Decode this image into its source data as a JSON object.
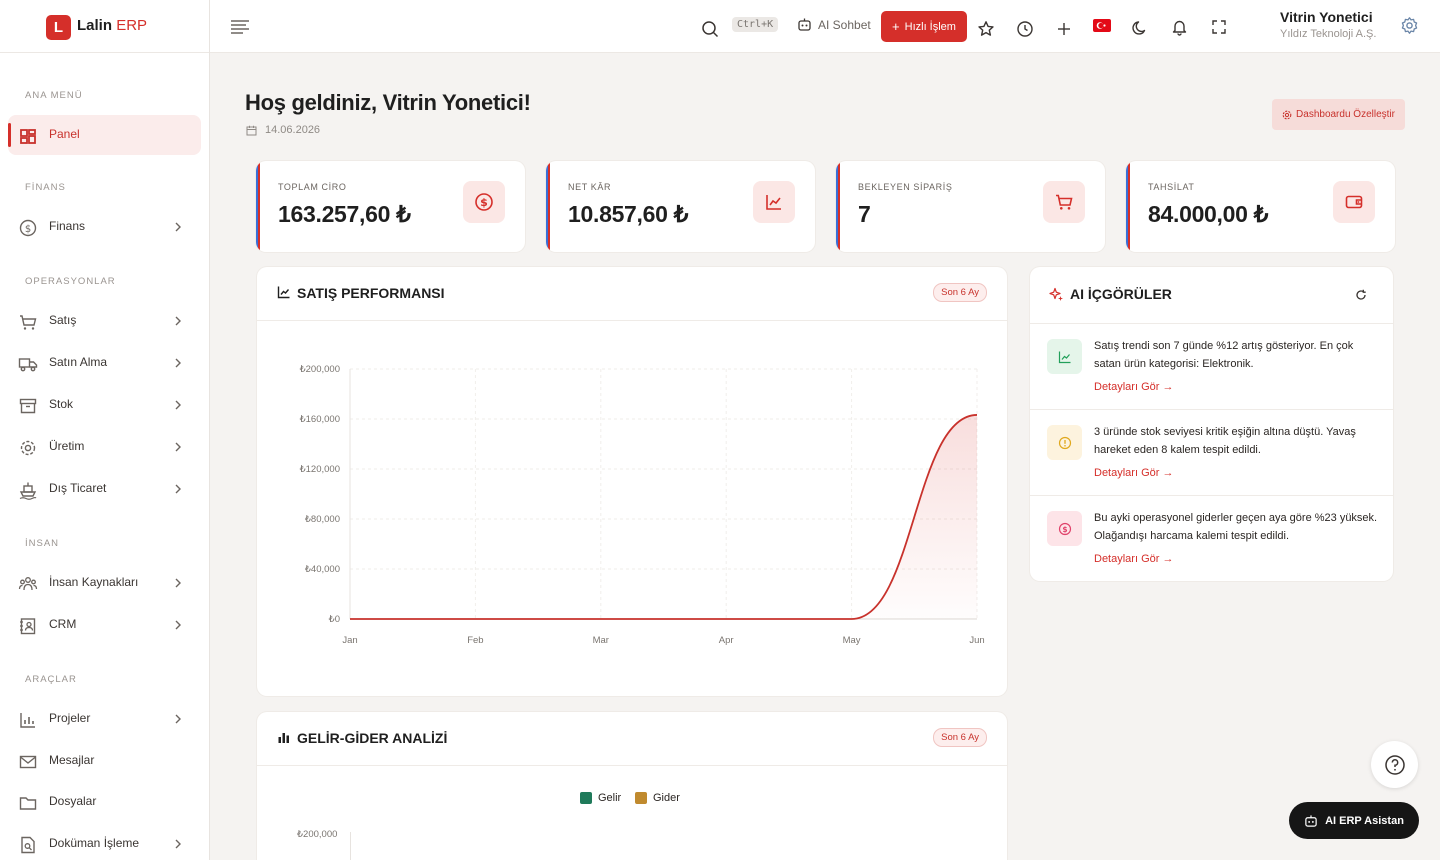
{
  "brand": {
    "logo_letter": "L",
    "name": "Lalin",
    "suffix": "ERP"
  },
  "sidebar": {
    "sections": [
      "ANA MENÜ",
      "FİNANS",
      "OPERASYONLAR",
      "İNSAN",
      "ARAÇLAR"
    ],
    "items": [
      {
        "label": "Panel",
        "icon": "dashboard-icon",
        "active": true,
        "has_children": false
      },
      {
        "label": "Finans",
        "icon": "dollar-circle-icon",
        "has_children": true
      },
      {
        "label": "Satış",
        "icon": "cart-icon",
        "has_children": true
      },
      {
        "label": "Satın Alma",
        "icon": "truck-icon",
        "has_children": true
      },
      {
        "label": "Stok",
        "icon": "archive-icon",
        "has_children": true
      },
      {
        "label": "Üretim",
        "icon": "gear-icon",
        "has_children": true
      },
      {
        "label": "Dış Ticaret",
        "icon": "ship-icon",
        "has_children": true
      },
      {
        "label": "İnsan Kaynakları",
        "icon": "people-icon",
        "has_children": true
      },
      {
        "label": "CRM",
        "icon": "contacts-icon",
        "has_children": true
      },
      {
        "label": "Projeler",
        "icon": "chart-icon",
        "has_children": true
      },
      {
        "label": "Mesajlar",
        "icon": "mail-icon",
        "has_children": false
      },
      {
        "label": "Dosyalar",
        "icon": "folder-icon",
        "has_children": false
      },
      {
        "label": "Doküman İşleme",
        "icon": "document-search-icon",
        "has_children": true
      }
    ]
  },
  "topbar": {
    "shortcut": "Ctrl+K",
    "ai_chat": "AI Sohbet",
    "quick_action": "Hızlı İşlem",
    "user_name": "Vitrin Yonetici",
    "user_company": "Yıldız Teknoloji A.Ş."
  },
  "main": {
    "welcome": "Hoş geldiniz, Vitrin Yonetici!",
    "date": "14.06.2026",
    "customize_label": "Dashboardu Özelleştir",
    "stats": [
      {
        "label": "TOPLAM CİRO",
        "value": "163.257,60 ₺",
        "icon": "dollar-circle-icon"
      },
      {
        "label": "NET KÂR",
        "value": "10.857,60 ₺",
        "icon": "trend-up-icon"
      },
      {
        "label": "BEKLEYEN SİPARİŞ",
        "value": "7",
        "icon": "cart-icon"
      },
      {
        "label": "TAHSİLAT",
        "value": "84.000,00 ₺",
        "icon": "wallet-icon"
      }
    ]
  },
  "sales_card": {
    "title": "SATIŞ PERFORMANSI",
    "badge": "Son 6 Ay"
  },
  "income_card": {
    "title": "GELİR-GİDER ANALİZİ",
    "badge": "Son 6 Ay",
    "legend": [
      {
        "name": "Gelir",
        "color": "#1f7a5a"
      },
      {
        "name": "Gider",
        "color": "#c08a2e"
      }
    ],
    "first_tick": "₺200,000"
  },
  "insights": {
    "title": "AI İÇGÖRÜLER",
    "link_label": "Detayları Gör →",
    "items": [
      {
        "text": "Satış trendi son 7 günde %12 artış gösteriyor. En çok satan ürün kategorisi: Elektronik.",
        "icon": "trend-up-icon",
        "tone": "green"
      },
      {
        "text": "3 üründe stok seviyesi kritik eşiğin altına düştü. Yavaş hareket eden 8 kalem tespit edildi.",
        "icon": "warning-icon",
        "tone": "yellow"
      },
      {
        "text": "Bu ayki operasyonel giderler geçen aya göre %23 yüksek. Olağandışı harcama kalemi tespit edildi.",
        "icon": "dollar-circle-icon",
        "tone": "pink"
      }
    ]
  },
  "assistant_label": "AI ERP Asistan",
  "colors": {
    "accent": "#d52f2a",
    "sidebar_active_bg": "#fbeceb"
  },
  "chart_data": {
    "type": "area",
    "title": "SATIŞ PERFORMANSI",
    "categories": [
      "Jan",
      "Feb",
      "Mar",
      "Apr",
      "May",
      "Jun"
    ],
    "y_ticks": [
      "₺0",
      "₺40,000",
      "₺80,000",
      "₺120,000",
      "₺160,000",
      "₺200,000"
    ],
    "ylim": [
      0,
      200000
    ],
    "series": [
      {
        "values": [
          0,
          0,
          0,
          0,
          0,
          163257.6
        ],
        "color": "#c8322c"
      }
    ],
    "grid": true
  }
}
